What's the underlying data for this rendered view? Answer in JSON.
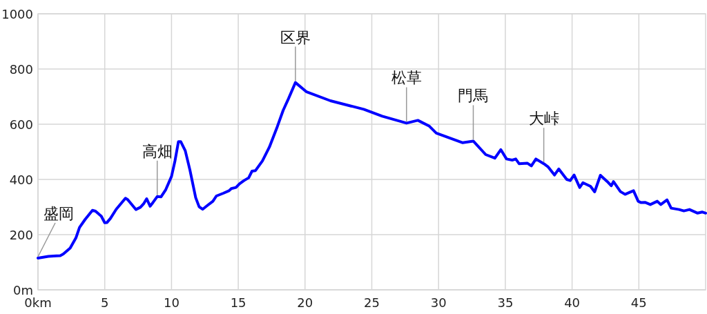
{
  "chart_data": {
    "type": "line",
    "x": [
      0,
      0.78,
      1.38,
      1.67,
      1.9,
      2.41,
      2.84,
      3.11,
      3.53,
      4.08,
      4.31,
      4.74,
      5.0,
      5.17,
      5.43,
      5.86,
      6.55,
      6.72,
      7.33,
      7.67,
      7.93,
      8.14,
      8.4,
      8.62,
      8.93,
      9.22,
      9.57,
      10.0,
      10.26,
      10.52,
      10.69,
      11.03,
      11.38,
      11.81,
      12.07,
      12.33,
      12.67,
      13.1,
      13.36,
      13.88,
      14.31,
      14.48,
      14.83,
      15.09,
      15.43,
      15.78,
      16.03,
      16.29,
      16.81,
      17.33,
      17.93,
      18.36,
      18.71,
      19.28,
      20.09,
      21.9,
      24.4,
      25.78,
      27.6,
      28.45,
      29.31,
      29.83,
      31.81,
      32.6,
      33.53,
      34.22,
      34.66,
      35.09,
      35.52,
      35.78,
      36.03,
      36.64,
      36.95,
      37.29,
      37.88,
      38.19,
      38.68,
      39.0,
      39.6,
      39.86,
      40.15,
      40.57,
      40.81,
      41.38,
      41.69,
      42.12,
      42.64,
      42.93,
      43.1,
      43.62,
      43.97,
      44.26,
      44.6,
      44.95,
      45.17,
      45.46,
      45.86,
      46.38,
      46.64,
      47.11,
      47.42,
      48.02,
      48.37,
      48.79,
      49.4,
      49.74,
      50.0
    ],
    "values": [
      115,
      121,
      123,
      124,
      130,
      151,
      188,
      226,
      255,
      288,
      285,
      267,
      243,
      244,
      259,
      292,
      332,
      327,
      291,
      299,
      313,
      330,
      303,
      317,
      338,
      337,
      363,
      411,
      467,
      537,
      537,
      504,
      434,
      334,
      301,
      292,
      305,
      321,
      340,
      350,
      359,
      367,
      371,
      384,
      396,
      406,
      430,
      432,
      467,
      517,
      592,
      650,
      687,
      751,
      718,
      685,
      654,
      629,
      604,
      614,
      593,
      568,
      533,
      539,
      490,
      477,
      508,
      474,
      470,
      474,
      457,
      459,
      449,
      474,
      457,
      446,
      416,
      438,
      400,
      396,
      416,
      371,
      388,
      375,
      355,
      415,
      392,
      377,
      392,
      356,
      346,
      352,
      359,
      321,
      316,
      317,
      309,
      321,
      309,
      326,
      296,
      291,
      286,
      291,
      278,
      282,
      278
    ],
    "color": "#0000ff",
    "xlim": [
      0,
      50
    ],
    "ylim": [
      0,
      1000
    ],
    "xticks": [
      {
        "value": 0,
        "label": "0km"
      },
      5,
      10,
      15,
      20,
      25,
      30,
      35,
      40,
      45
    ],
    "yticks": [
      {
        "value": 0,
        "label": "0m"
      },
      200,
      400,
      600,
      800,
      1000
    ],
    "grid": true,
    "annotations": [
      {
        "text": "盛岡",
        "x": 0,
        "y": 115
      },
      {
        "text": "高畑",
        "x": 8.93,
        "y": 338
      },
      {
        "text": "区界",
        "x": 19.28,
        "y": 751
      },
      {
        "text": "松草",
        "x": 27.6,
        "y": 604
      },
      {
        "text": "門馬",
        "x": 32.6,
        "y": 539
      },
      {
        "text": "大峠",
        "x": 37.88,
        "y": 457
      }
    ]
  }
}
